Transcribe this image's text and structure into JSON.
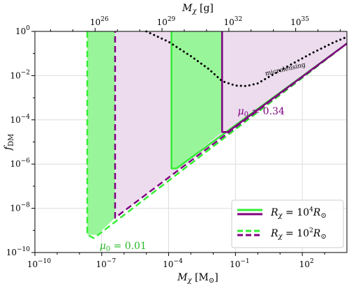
{
  "chart_data": {
    "type": "area",
    "bottom_axis": {
      "label_main": "M",
      "label_sub": "χ",
      "label_unit": "[M",
      "label_unit_sub": "⊙",
      "label_close": "]",
      "scale": "log",
      "range": [
        -10,
        4
      ],
      "ticks": [
        {
          "value": -10,
          "label": "10",
          "exp": "−10"
        },
        {
          "value": -7,
          "label": "10",
          "exp": "−7"
        },
        {
          "value": -4,
          "label": "10",
          "exp": "−4"
        },
        {
          "value": -1,
          "label": "10",
          "exp": "−1"
        },
        {
          "value": 2,
          "label": "10",
          "exp": "2"
        }
      ]
    },
    "top_axis": {
      "label_main": "M",
      "label_sub": "χ",
      "label_unit": "[g]",
      "ticks": [
        {
          "value": 26,
          "label": "10",
          "exp": "26"
        },
        {
          "value": 29,
          "label": "10",
          "exp": "29"
        },
        {
          "value": 32,
          "label": "10",
          "exp": "32"
        },
        {
          "value": 35,
          "label": "10",
          "exp": "35"
        }
      ]
    },
    "left_axis": {
      "label_main": "f",
      "label_sub": "DM",
      "scale": "log",
      "range": [
        -10,
        0
      ],
      "ticks": [
        {
          "value": 0,
          "label": "10",
          "exp": "0"
        },
        {
          "value": -2,
          "label": "10",
          "exp": "−2"
        },
        {
          "value": -4,
          "label": "10",
          "exp": "−4"
        },
        {
          "value": -6,
          "label": "10",
          "exp": "−6"
        },
        {
          "value": -8,
          "label": "10",
          "exp": "−8"
        },
        {
          "value": -10,
          "label": "10",
          "exp": "−10"
        }
      ]
    },
    "grid": true,
    "colors": {
      "green": "#33ee33",
      "green_fill": "#99f599",
      "purple": "#800080",
      "purple_fill": "#ecdcee",
      "black": "#000000"
    },
    "regions": [
      {
        "name": "green dashed (R=10^2)",
        "polygon": [
          [
            -7.65,
            0
          ],
          [
            -6.4,
            0
          ],
          [
            -6.4,
            -8.43
          ],
          [
            -7.2,
            -9.2
          ],
          [
            -7.65,
            -9.2
          ]
        ]
      },
      {
        "name": "purple dashed (R=10^2)",
        "polygon": [
          [
            -6.4,
            0
          ],
          [
            4,
            0
          ],
          [
            4,
            -0.55
          ],
          [
            -6.4,
            -8.43
          ]
        ]
      },
      {
        "name": "green solid (R=10^4)",
        "polygon": [
          [
            -3.87,
            0
          ],
          [
            -1.6,
            0
          ],
          [
            -1.6,
            -4.55
          ],
          [
            -3.65,
            -6.2
          ],
          [
            -3.87,
            -6.2
          ]
        ]
      },
      {
        "name": "purple solid (R=10^4)",
        "polygon": [
          [
            -1.6,
            0
          ],
          [
            4,
            0
          ],
          [
            4,
            -0.55
          ],
          [
            -1.6,
            -4.55
          ]
        ]
      }
    ],
    "series": [
      {
        "style": "green-dashed",
        "points": [
          [
            -7.65,
            0
          ],
          [
            -7.65,
            -9.2
          ],
          [
            -7.35,
            -9.35
          ],
          [
            4,
            -0.55
          ]
        ]
      },
      {
        "style": "purple-dashed",
        "points": [
          [
            -6.4,
            0
          ],
          [
            -6.4,
            -8.43
          ],
          [
            4,
            -0.55
          ]
        ]
      },
      {
        "style": "green-solid",
        "points": [
          [
            -3.87,
            0
          ],
          [
            -3.87,
            -6.2
          ],
          [
            -3.65,
            -6.2
          ],
          [
            4,
            -0.55
          ]
        ]
      },
      {
        "style": "purple-solid",
        "points": [
          [
            -1.6,
            0
          ],
          [
            -1.6,
            -4.55
          ],
          [
            -1.35,
            -4.55
          ],
          [
            4,
            -0.55
          ]
        ]
      },
      {
        "style": "black-dotted",
        "points": [
          [
            -5.0,
            0
          ],
          [
            -4.0,
            -0.47
          ],
          [
            -3.0,
            -1.12
          ],
          [
            -2.2,
            -1.7
          ],
          [
            -1.6,
            -2.25
          ],
          [
            -1.0,
            -2.45
          ],
          [
            -0.5,
            -2.47
          ],
          [
            0.0,
            -2.35
          ],
          [
            0.6,
            -2.0
          ],
          [
            1.4,
            -1.55
          ],
          [
            2.4,
            -1.0
          ],
          [
            3.4,
            -0.5
          ],
          [
            4.0,
            -0.25
          ]
        ]
      }
    ],
    "annotations": {
      "microlensing": "microlensing",
      "mu_high": {
        "main": "μ",
        "sub": "0",
        "rest": " = 0.34"
      },
      "mu_low": {
        "main": "μ",
        "sub": "0",
        "rest": " = 0.01"
      }
    },
    "legend": {
      "placement": "bottom-right",
      "entries": [
        {
          "main": "R",
          "sub": "χ",
          "eq": " = 10",
          "exp": "4",
          "unit": "R",
          "unit_sub": "⊙",
          "style": "solid"
        },
        {
          "main": "R",
          "sub": "χ",
          "eq": " = 10",
          "exp": "2",
          "unit": "R",
          "unit_sub": "⊙",
          "style": "dashed"
        }
      ]
    }
  }
}
